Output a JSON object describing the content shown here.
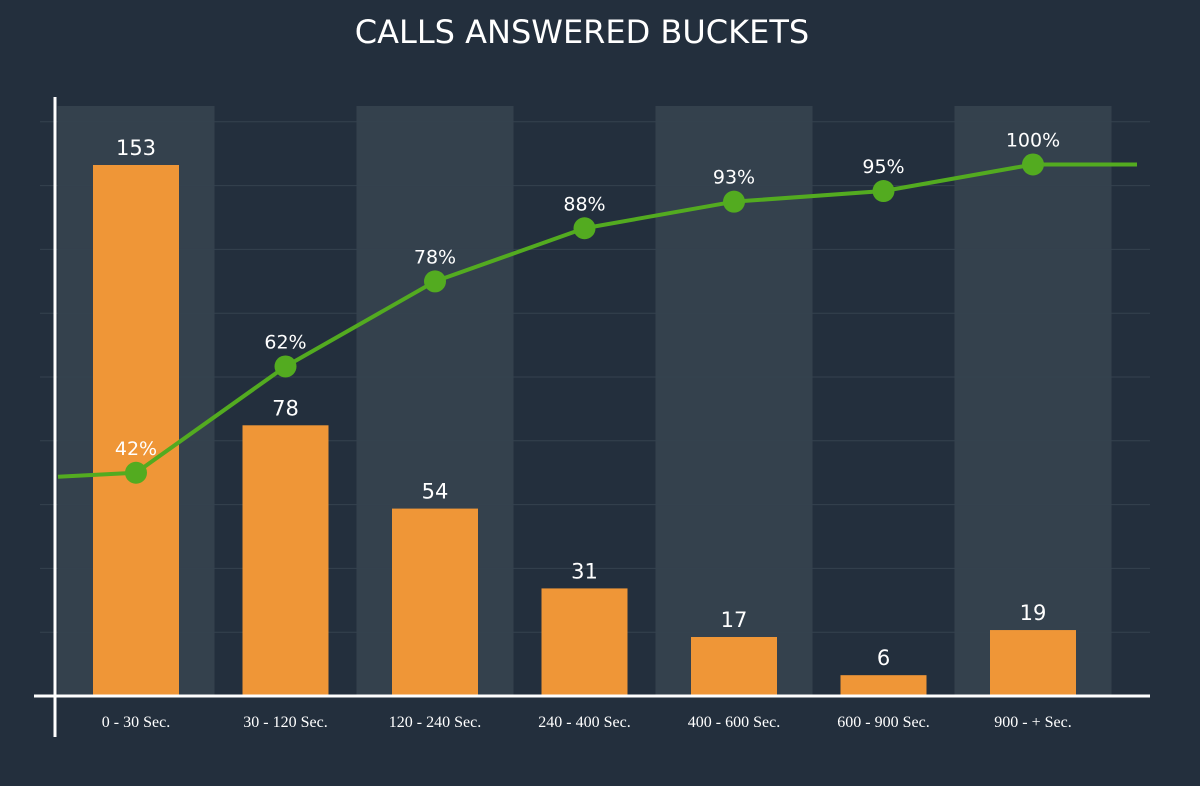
{
  "chart_data": {
    "type": "bar",
    "title": "CALLS ANSWERED BUCKETS",
    "xlabel": "",
    "ylabel": "",
    "categories": [
      "0 - 30 Sec.",
      "30 - 120 Sec.",
      "120 - 240 Sec.",
      "240 - 400 Sec.",
      "400 - 600 Sec.",
      "600 - 900 Sec.",
      "900 - + Sec."
    ],
    "series": [
      {
        "type": "bar",
        "values": [
          153,
          78,
          54,
          31,
          17,
          6,
          19
        ]
      },
      {
        "type": "line",
        "values": [
          42,
          62,
          78,
          88,
          93,
          95,
          100
        ],
        "value_labels": [
          "42%",
          "62%",
          "78%",
          "88%",
          "93%",
          "95%",
          "100%"
        ]
      }
    ],
    "ylim": [
      0,
      170
    ],
    "y2lim": [
      0,
      111
    ],
    "grid": true,
    "colors": {
      "background": "#232f3d",
      "bar": "#ef9637",
      "line": "#53ab20",
      "band": "#34414d",
      "grid": "#35424f",
      "axis": "#ffffff",
      "text": "#ffffff"
    }
  }
}
